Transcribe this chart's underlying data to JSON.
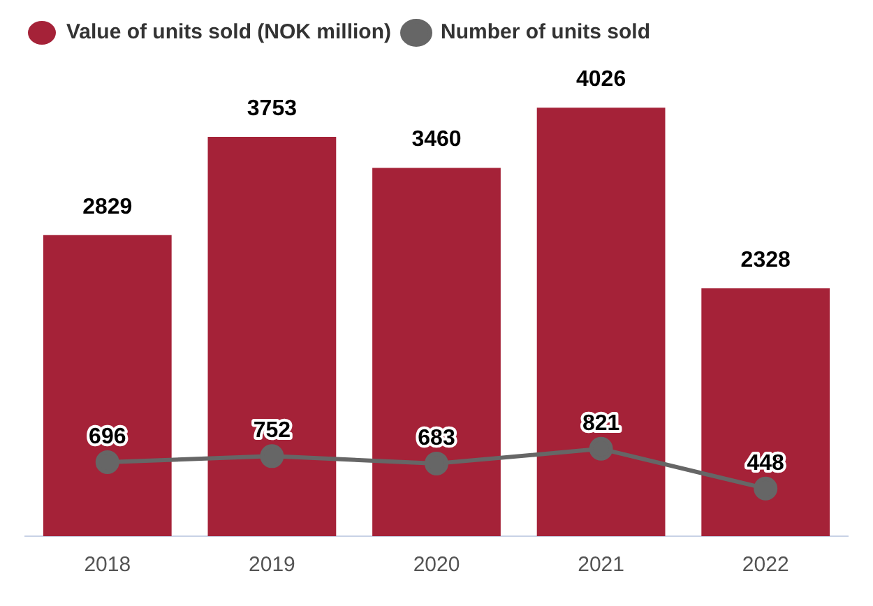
{
  "chart_data": {
    "type": "bar",
    "categories": [
      "2018",
      "2019",
      "2020",
      "2021",
      "2022"
    ],
    "series": [
      {
        "name": "Value of units sold (NOK million)",
        "color": "#a52238",
        "values": [
          2829,
          3753,
          3460,
          4026,
          2328
        ]
      },
      {
        "name": "Number of units sold",
        "type": "line",
        "color": "#666666",
        "values": [
          696,
          752,
          683,
          821,
          448
        ]
      }
    ],
    "data_labels": true,
    "legend": "top left",
    "grid": false,
    "marker": "circle",
    "line_style": "solid",
    "tick_labels": "x"
  }
}
